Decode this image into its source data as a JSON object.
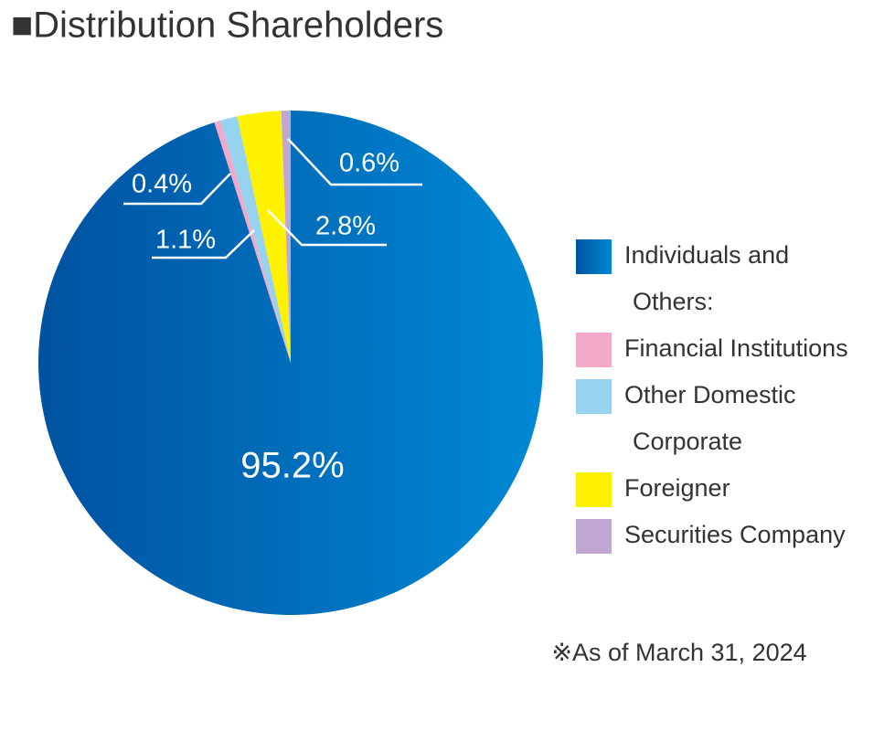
{
  "chart_data": {
    "type": "pie",
    "title": "■Distribution Shareholders",
    "categories": [
      "Individuals and Others:",
      "Financial Institutions",
      "Other Domestic Corporate",
      "Foreigner",
      "Securities Company"
    ],
    "values": [
      95.2,
      0.4,
      1.1,
      2.8,
      0.6
    ],
    "value_labels": [
      "95.2%",
      "0.4%",
      "1.1%",
      "2.8%",
      "0.6%"
    ],
    "colors": [
      "#0068b7",
      "#f2a9c8",
      "#96d3ee",
      "#fff100",
      "#c0a7d1"
    ],
    "note": "※As of March 31, 2024"
  }
}
